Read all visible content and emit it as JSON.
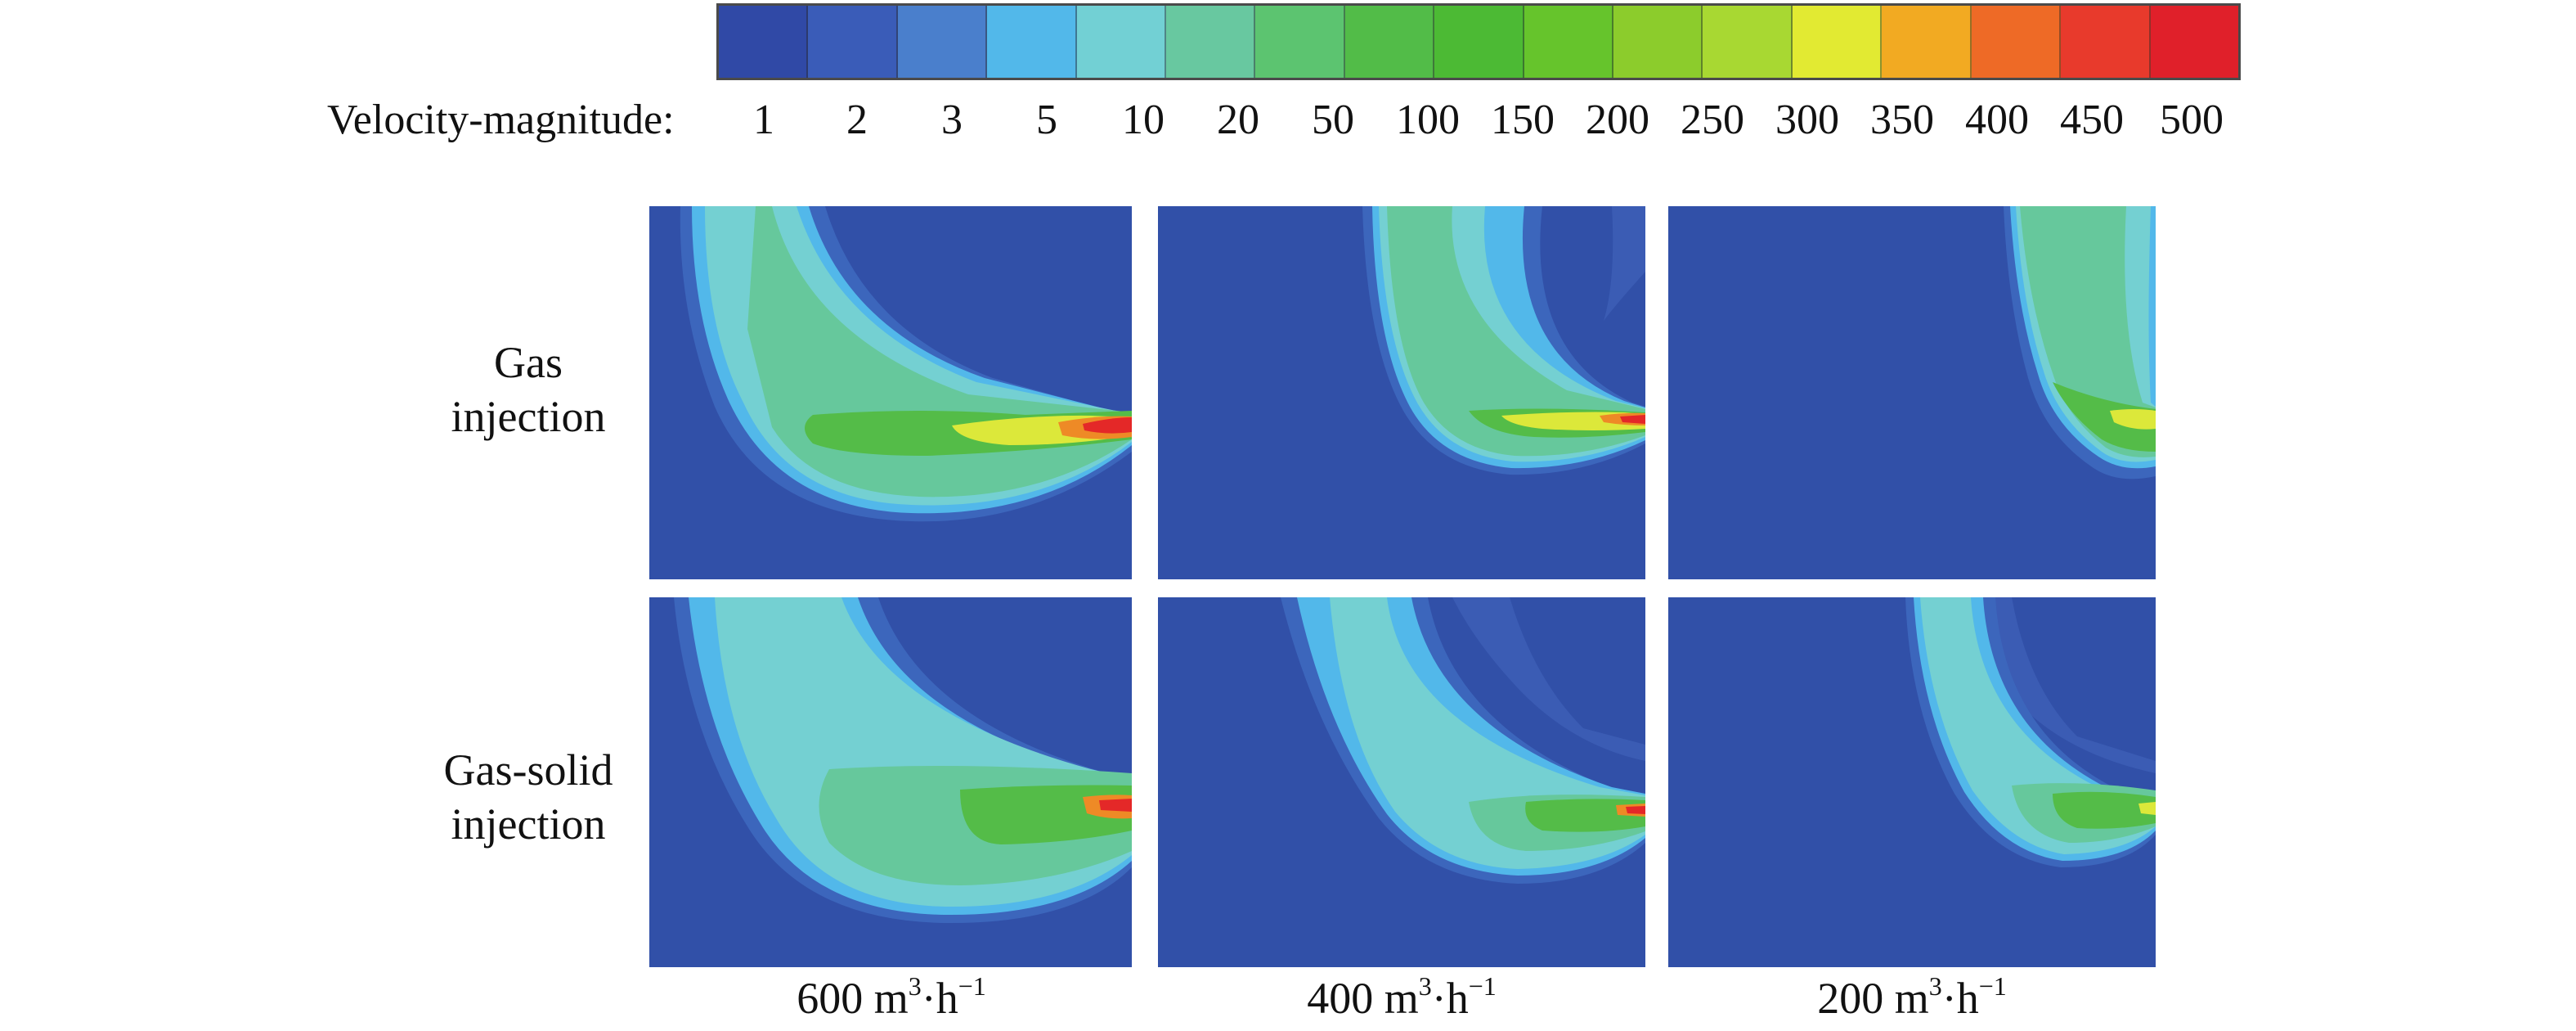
{
  "legend": {
    "label": "Velocity-magnitude:",
    "ticks": [
      "1",
      "2",
      "3",
      "5",
      "10",
      "20",
      "50",
      "100",
      "150",
      "200",
      "250",
      "300",
      "350",
      "400",
      "450",
      "500"
    ],
    "colors": [
      "#3049a6",
      "#3a5cb8",
      "#4a7fcc",
      "#52b8ea",
      "#72d0d4",
      "#68c8a0",
      "#5cc470",
      "#52bc48",
      "#4cba34",
      "#66c42c",
      "#8ccc2c",
      "#a8d832",
      "#e2ea32",
      "#f2aa22",
      "#ee6a26",
      "#e83a2c",
      "#e0202a"
    ]
  },
  "rows": [
    {
      "line1": "Gas",
      "line2": "injection"
    },
    {
      "line1": "Gas-solid",
      "line2": "injection"
    }
  ],
  "columns": [
    {
      "value": "600",
      "unit_base": "m",
      "unit_exp": "3",
      "unit_mid": "·h",
      "unit_exp2": "−1"
    },
    {
      "value": "400",
      "unit_base": "m",
      "unit_exp": "3",
      "unit_mid": "·h",
      "unit_exp2": "−1"
    },
    {
      "value": "200",
      "unit_base": "m",
      "unit_exp": "3",
      "unit_mid": "·h",
      "unit_exp2": "−1"
    }
  ],
  "contour_colors": {
    "background": "#3150a8",
    "outer": "#3c66bc",
    "mid": "#52b8ea",
    "cyan": "#74d0d2",
    "teal": "#66c89c",
    "green": "#54bc48",
    "yellow": "#dce83a",
    "orange": "#ee8a26",
    "red": "#e42828"
  }
}
